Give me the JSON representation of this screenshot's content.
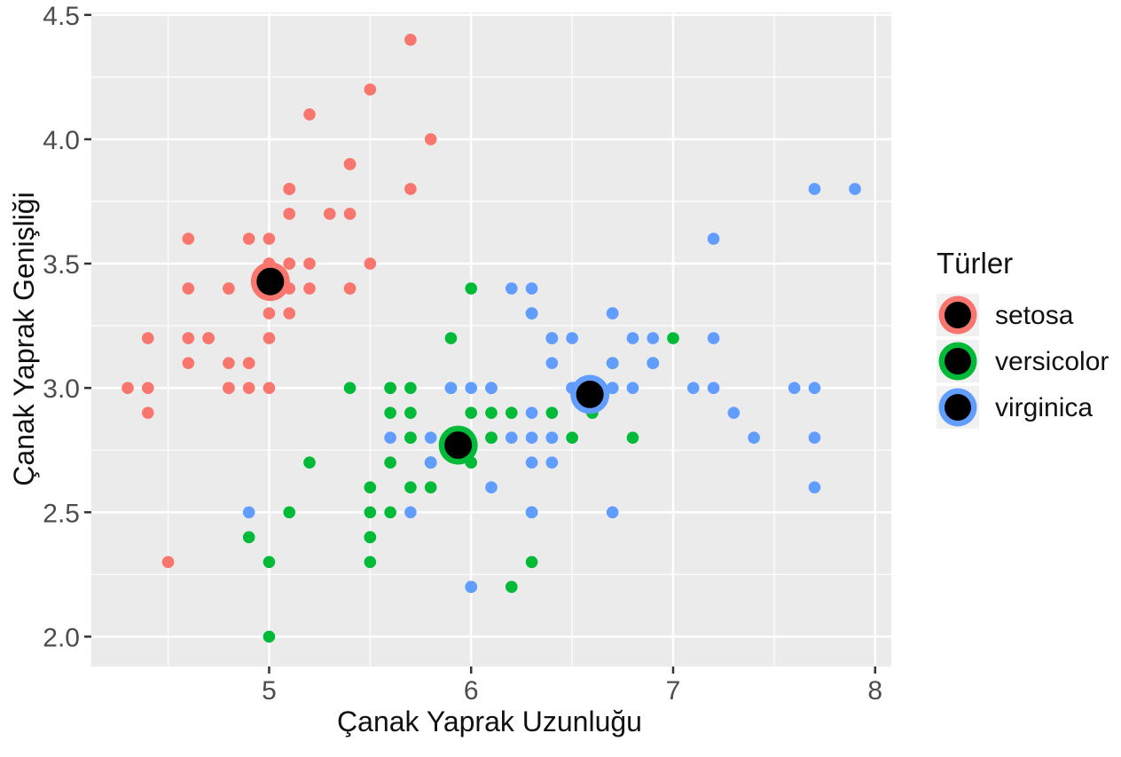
{
  "chart_data": {
    "type": "scatter",
    "title": "",
    "xlabel": "Çanak Yaprak Uzunluğu",
    "ylabel": "Çanak Yaprak Genişliği",
    "legend_title": "Türler",
    "legend_position": "right",
    "xlim": [
      4.12,
      8.08
    ],
    "ylim": [
      1.88,
      4.51
    ],
    "x_ticks": [
      5,
      6,
      7,
      8
    ],
    "x_tick_labels": [
      "5",
      "6",
      "7",
      "8"
    ],
    "y_ticks": [
      2.0,
      2.5,
      3.0,
      3.5,
      4.0,
      4.5
    ],
    "y_tick_labels": [
      "2.0",
      "2.5",
      "3.0",
      "3.5",
      "4.0",
      "4.5"
    ],
    "grid": "major and minor white gridlines on gray panel",
    "panel_bg": "#EBEBEB",
    "grid_color": "#FFFFFF",
    "tick_color": "#333333",
    "legend_key_bg": "#F1F1F1",
    "centroid_core_color": "#000000",
    "series": [
      {
        "name": "setosa",
        "color": "#F8766D",
        "points": [
          [
            5.1,
            3.5
          ],
          [
            4.9,
            3.0
          ],
          [
            4.7,
            3.2
          ],
          [
            4.6,
            3.1
          ],
          [
            5.0,
            3.6
          ],
          [
            5.4,
            3.9
          ],
          [
            4.6,
            3.4
          ],
          [
            5.0,
            3.4
          ],
          [
            4.4,
            2.9
          ],
          [
            4.9,
            3.1
          ],
          [
            5.4,
            3.7
          ],
          [
            4.8,
            3.4
          ],
          [
            4.8,
            3.0
          ],
          [
            4.3,
            3.0
          ],
          [
            5.8,
            4.0
          ],
          [
            5.7,
            4.4
          ],
          [
            5.4,
            3.9
          ],
          [
            5.1,
            3.5
          ],
          [
            5.7,
            3.8
          ],
          [
            5.1,
            3.8
          ],
          [
            5.4,
            3.4
          ],
          [
            5.1,
            3.7
          ],
          [
            4.6,
            3.6
          ],
          [
            5.1,
            3.3
          ],
          [
            4.8,
            3.4
          ],
          [
            5.0,
            3.0
          ],
          [
            5.0,
            3.4
          ],
          [
            5.2,
            3.5
          ],
          [
            5.2,
            3.4
          ],
          [
            4.7,
            3.2
          ],
          [
            4.8,
            3.1
          ],
          [
            5.4,
            3.4
          ],
          [
            5.2,
            4.1
          ],
          [
            5.5,
            4.2
          ],
          [
            4.9,
            3.1
          ],
          [
            5.0,
            3.2
          ],
          [
            5.5,
            3.5
          ],
          [
            4.9,
            3.6
          ],
          [
            4.4,
            3.0
          ],
          [
            5.1,
            3.4
          ],
          [
            5.0,
            3.5
          ],
          [
            4.5,
            2.3
          ],
          [
            4.4,
            3.2
          ],
          [
            5.0,
            3.5
          ],
          [
            5.1,
            3.8
          ],
          [
            4.8,
            3.0
          ],
          [
            5.1,
            3.8
          ],
          [
            4.6,
            3.2
          ],
          [
            5.3,
            3.7
          ],
          [
            5.0,
            3.3
          ]
        ]
      },
      {
        "name": "versicolor",
        "color": "#00BA38",
        "points": [
          [
            7.0,
            3.2
          ],
          [
            6.4,
            3.2
          ],
          [
            6.9,
            3.1
          ],
          [
            5.5,
            2.3
          ],
          [
            6.5,
            2.8
          ],
          [
            5.7,
            2.8
          ],
          [
            6.3,
            3.3
          ],
          [
            4.9,
            2.4
          ],
          [
            6.6,
            2.9
          ],
          [
            5.2,
            2.7
          ],
          [
            5.0,
            2.0
          ],
          [
            5.9,
            3.0
          ],
          [
            6.0,
            2.2
          ],
          [
            6.1,
            2.9
          ],
          [
            5.6,
            2.9
          ],
          [
            6.7,
            3.1
          ],
          [
            5.6,
            3.0
          ],
          [
            5.8,
            2.7
          ],
          [
            6.2,
            2.2
          ],
          [
            5.6,
            2.5
          ],
          [
            5.9,
            3.2
          ],
          [
            6.1,
            2.8
          ],
          [
            6.3,
            2.5
          ],
          [
            6.1,
            2.8
          ],
          [
            6.4,
            2.9
          ],
          [
            6.6,
            3.0
          ],
          [
            6.8,
            2.8
          ],
          [
            6.7,
            3.0
          ],
          [
            6.0,
            2.9
          ],
          [
            5.7,
            2.6
          ],
          [
            5.5,
            2.4
          ],
          [
            5.5,
            2.4
          ],
          [
            5.8,
            2.7
          ],
          [
            6.0,
            2.7
          ],
          [
            5.4,
            3.0
          ],
          [
            6.0,
            3.4
          ],
          [
            6.7,
            3.1
          ],
          [
            6.3,
            2.3
          ],
          [
            5.6,
            3.0
          ],
          [
            5.5,
            2.5
          ],
          [
            5.5,
            2.6
          ],
          [
            6.1,
            3.0
          ],
          [
            5.8,
            2.6
          ],
          [
            5.0,
            2.3
          ],
          [
            5.6,
            2.7
          ],
          [
            5.7,
            3.0
          ],
          [
            5.7,
            2.9
          ],
          [
            6.2,
            2.9
          ],
          [
            5.1,
            2.5
          ],
          [
            5.7,
            2.8
          ]
        ]
      },
      {
        "name": "virginica",
        "color": "#619CFF",
        "points": [
          [
            6.3,
            3.3
          ],
          [
            5.8,
            2.7
          ],
          [
            7.1,
            3.0
          ],
          [
            6.3,
            2.9
          ],
          [
            6.5,
            3.0
          ],
          [
            7.6,
            3.0
          ],
          [
            4.9,
            2.5
          ],
          [
            7.3,
            2.9
          ],
          [
            6.7,
            2.5
          ],
          [
            7.2,
            3.6
          ],
          [
            6.5,
            3.2
          ],
          [
            6.4,
            2.7
          ],
          [
            6.8,
            3.0
          ],
          [
            5.7,
            2.5
          ],
          [
            5.8,
            2.8
          ],
          [
            6.4,
            3.2
          ],
          [
            6.5,
            3.0
          ],
          [
            7.7,
            3.8
          ],
          [
            7.7,
            2.6
          ],
          [
            6.0,
            2.2
          ],
          [
            6.9,
            3.2
          ],
          [
            5.6,
            2.8
          ],
          [
            7.7,
            2.8
          ],
          [
            6.3,
            2.7
          ],
          [
            6.7,
            3.3
          ],
          [
            7.2,
            3.2
          ],
          [
            6.2,
            2.8
          ],
          [
            6.1,
            3.0
          ],
          [
            6.4,
            2.8
          ],
          [
            7.2,
            3.0
          ],
          [
            7.4,
            2.8
          ],
          [
            7.9,
            3.8
          ],
          [
            6.4,
            2.8
          ],
          [
            6.3,
            2.8
          ],
          [
            6.1,
            2.6
          ],
          [
            7.7,
            3.0
          ],
          [
            6.3,
            3.4
          ],
          [
            6.4,
            3.1
          ],
          [
            6.0,
            3.0
          ],
          [
            6.9,
            3.1
          ],
          [
            6.7,
            3.1
          ],
          [
            6.9,
            3.1
          ],
          [
            5.8,
            2.7
          ],
          [
            6.8,
            3.2
          ],
          [
            6.7,
            3.3
          ],
          [
            6.7,
            3.0
          ],
          [
            6.3,
            2.5
          ],
          [
            6.5,
            3.0
          ],
          [
            6.2,
            3.4
          ],
          [
            5.9,
            3.0
          ]
        ]
      }
    ],
    "centroids": [
      {
        "name": "setosa",
        "x": 5.006,
        "y": 3.428
      },
      {
        "name": "versicolor",
        "x": 5.936,
        "y": 2.77
      },
      {
        "name": "virginica",
        "x": 6.588,
        "y": 2.974
      }
    ]
  }
}
